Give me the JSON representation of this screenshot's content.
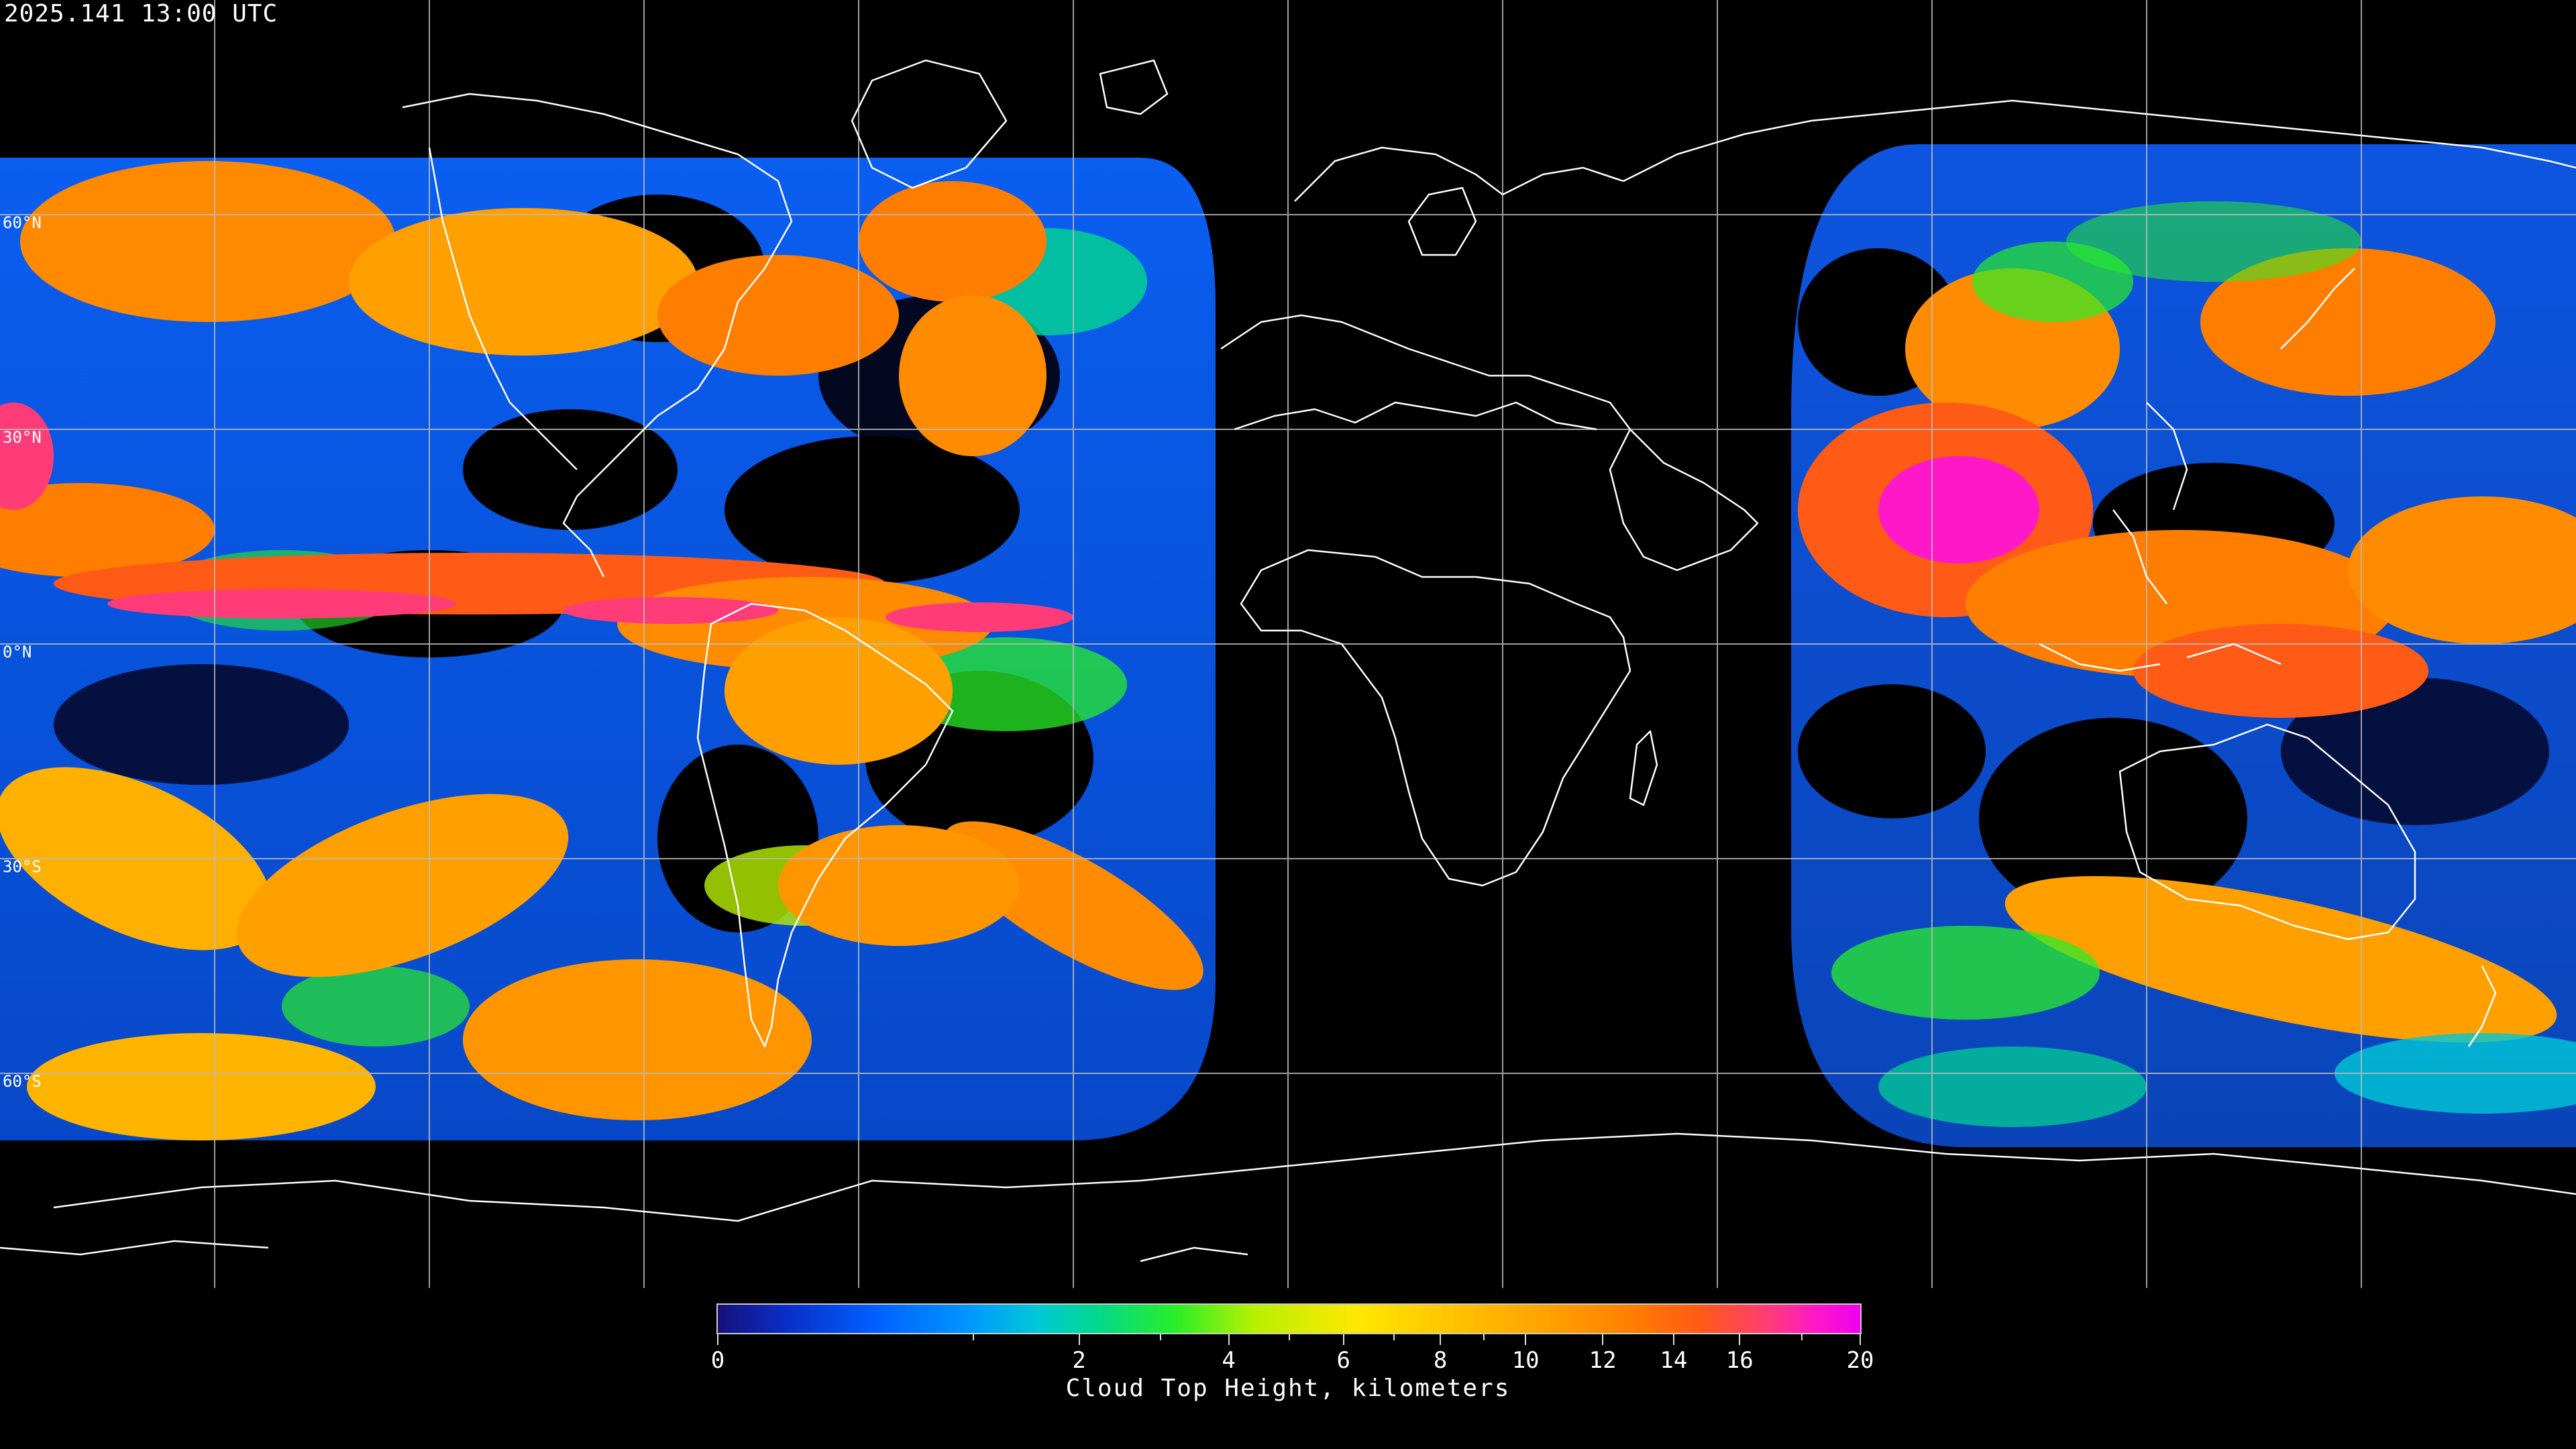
{
  "timestamp": "2025.141 13:00 UTC",
  "map": {
    "projection": "equirectangular",
    "graticule_spacing_degrees": 30,
    "lat_labels": [
      "60°N",
      "30°N",
      "0°N",
      "30°S",
      "60°S"
    ],
    "lat_values": [
      60,
      30,
      0,
      -30,
      -60
    ],
    "background_color": "#000000",
    "coastline_color": "#ffffff",
    "grid_color": "#bbbbbb",
    "no_data_region": "Europe, Africa, Middle East, Indian Ocean"
  },
  "legend": {
    "title": "Cloud Top Height, kilometers",
    "tick_labels": [
      "0",
      "2",
      "4",
      "6",
      "8",
      "10",
      "12",
      "14",
      "16",
      "20"
    ],
    "tick_values": [
      0,
      2,
      4,
      6,
      8,
      10,
      12,
      14,
      16,
      20
    ],
    "minor_tick_values": [
      1,
      3,
      5,
      7,
      9,
      18
    ],
    "scale": "square-root",
    "range_km": [
      0,
      20
    ],
    "colors": [
      "#16107a",
      "#0a2ec8",
      "#0061ff",
      "#0096ff",
      "#00c8d6",
      "#28ee28",
      "#ffe800",
      "#ffa000",
      "#ff7e00",
      "#ff3c78",
      "#ee00ee"
    ]
  }
}
